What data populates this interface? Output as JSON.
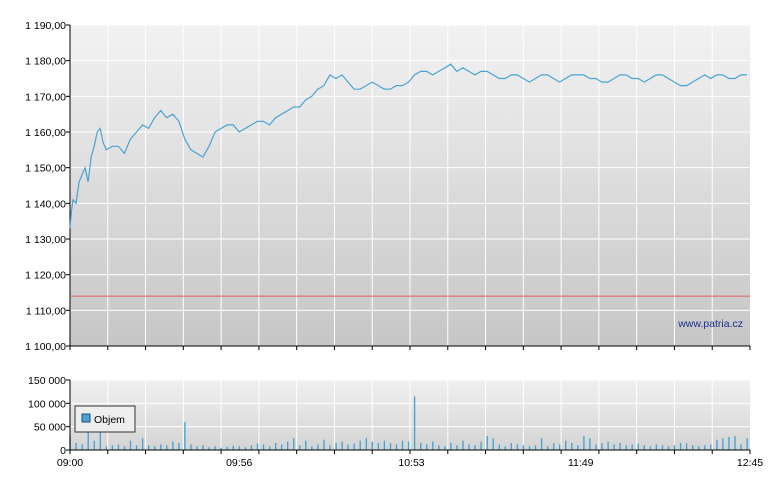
{
  "colors": {
    "price_line": "#4aa3d4",
    "volume_bar": "#4aa3d4",
    "reference_line": "#e06060",
    "grid": "#ffffff",
    "bg_top": "#f2f2f2",
    "bg_bottom": "#c6c6c6"
  },
  "watermark": "www.patria.cz",
  "legend": {
    "label": "Objem"
  },
  "chart_data": [
    {
      "type": "line",
      "title": "",
      "xlabel": "",
      "ylabel": "",
      "ylim": [
        1100,
        1190
      ],
      "xlim_minutes": [
        0,
        225
      ],
      "y_ticks": [
        1100,
        1110,
        1120,
        1130,
        1140,
        1150,
        1160,
        1170,
        1180,
        1190
      ],
      "y_tick_labels": [
        "1 100,00",
        "1 110,00",
        "1 120,00",
        "1 130,00",
        "1 140,00",
        "1 150,00",
        "1 160,00",
        "1 170,00",
        "1 180,00",
        "1 190,00"
      ],
      "reference_line": 1114,
      "series": [
        {
          "x": [
            0,
            0.5,
            1,
            2,
            3,
            4,
            5,
            6,
            7,
            8,
            9,
            10,
            11,
            12,
            14,
            16,
            18,
            20,
            22,
            24,
            26,
            28,
            30,
            32,
            34,
            36,
            38,
            40,
            42,
            44,
            46,
            48,
            50,
            52,
            54,
            56,
            58,
            60,
            62,
            64,
            66,
            68,
            70,
            72,
            74,
            76,
            78,
            80,
            82,
            84,
            86,
            88,
            90,
            92,
            94,
            96,
            98,
            100,
            102,
            104,
            106,
            108,
            110,
            112,
            114,
            116,
            118,
            120,
            122,
            124,
            126,
            128,
            130,
            132,
            134,
            136,
            138,
            140,
            142,
            144,
            146,
            148,
            150,
            152,
            154,
            156,
            158,
            160,
            162,
            164,
            166,
            168,
            170,
            172,
            174,
            176,
            178,
            180,
            182,
            184,
            186,
            188,
            190,
            192,
            194,
            196,
            198,
            200,
            202,
            204,
            206,
            208,
            210,
            212,
            214,
            216,
            218,
            220,
            222,
            224
          ],
          "values": [
            1133,
            1138,
            1141,
            1140,
            1146,
            1148,
            1150,
            1146,
            1153,
            1156,
            1160,
            1161,
            1157,
            1155,
            1156,
            1156,
            1154,
            1158,
            1160,
            1162,
            1161,
            1164,
            1166,
            1164,
            1165,
            1163,
            1158,
            1155,
            1154,
            1153,
            1156,
            1160,
            1161,
            1162,
            1162,
            1160,
            1161,
            1162,
            1163,
            1163,
            1162,
            1164,
            1165,
            1166,
            1167,
            1167,
            1169,
            1170,
            1172,
            1173,
            1176,
            1175,
            1176,
            1174,
            1172,
            1172,
            1173,
            1174,
            1173,
            1172,
            1172,
            1173,
            1173,
            1174,
            1176,
            1177,
            1177,
            1176,
            1177,
            1178,
            1179,
            1177,
            1178,
            1177,
            1176,
            1177,
            1177,
            1176,
            1175,
            1175,
            1176,
            1176,
            1175,
            1174,
            1175,
            1176,
            1176,
            1175,
            1174,
            1175,
            1176,
            1176,
            1176,
            1175,
            1175,
            1174,
            1174,
            1175,
            1176,
            1176,
            1175,
            1175,
            1174,
            1175,
            1176,
            1176,
            1175,
            1174,
            1173,
            1173,
            1174,
            1175,
            1176,
            1175,
            1176,
            1176,
            1175,
            1175,
            1176,
            1176
          ]
        }
      ]
    },
    {
      "type": "bar",
      "title": "",
      "xlabel": "",
      "ylabel": "",
      "ylim": [
        0,
        150000
      ],
      "y_ticks": [
        0,
        50000,
        100000,
        150000
      ],
      "y_tick_labels": [
        "0",
        "50 000",
        "100 000",
        "150 000"
      ],
      "x_tick_minutes": [
        0,
        56,
        113,
        169,
        225
      ],
      "x_tick_labels": [
        "09:00",
        "09:56",
        "10:53",
        "11:49",
        "12:45"
      ],
      "series": [
        {
          "name": "Objem",
          "x": [
            0,
            2,
            4,
            6,
            8,
            10,
            12,
            14,
            16,
            18,
            20,
            22,
            24,
            26,
            28,
            30,
            32,
            34,
            36,
            38,
            40,
            42,
            44,
            46,
            48,
            50,
            52,
            54,
            56,
            58,
            60,
            62,
            64,
            66,
            68,
            70,
            72,
            74,
            76,
            78,
            80,
            82,
            84,
            86,
            88,
            90,
            92,
            94,
            96,
            98,
            100,
            102,
            104,
            106,
            108,
            110,
            112,
            114,
            116,
            118,
            120,
            122,
            124,
            126,
            128,
            130,
            132,
            134,
            136,
            138,
            140,
            142,
            144,
            146,
            148,
            150,
            152,
            154,
            156,
            158,
            160,
            162,
            164,
            166,
            168,
            170,
            172,
            174,
            176,
            178,
            180,
            182,
            184,
            186,
            188,
            190,
            192,
            194,
            196,
            198,
            200,
            202,
            204,
            206,
            208,
            210,
            212,
            214,
            216,
            218,
            220,
            222,
            224
          ],
          "values": [
            30000,
            15000,
            12000,
            55000,
            20000,
            60000,
            8000,
            10000,
            12000,
            8000,
            20000,
            10000,
            25000,
            10000,
            8000,
            12000,
            10000,
            18000,
            15000,
            60000,
            12000,
            8000,
            10000,
            6000,
            8000,
            5000,
            7000,
            9000,
            8000,
            6000,
            10000,
            14000,
            12000,
            8000,
            15000,
            12000,
            18000,
            25000,
            10000,
            20000,
            8000,
            12000,
            22000,
            10000,
            15000,
            18000,
            12000,
            14000,
            20000,
            25000,
            18000,
            15000,
            20000,
            15000,
            12000,
            20000,
            18000,
            115000,
            15000,
            12000,
            18000,
            10000,
            8000,
            15000,
            10000,
            20000,
            12000,
            10000,
            18000,
            30000,
            25000,
            12000,
            8000,
            15000,
            12000,
            10000,
            8000,
            10000,
            25000,
            8000,
            15000,
            12000,
            20000,
            15000,
            10000,
            30000,
            25000,
            12000,
            15000,
            18000,
            12000,
            15000,
            10000,
            12000,
            14000,
            10000,
            8000,
            12000,
            10000,
            8000,
            10000,
            15000,
            14000,
            10000,
            8000,
            10000,
            12000,
            22000,
            25000,
            28000,
            30000,
            12000,
            25000
          ]
        }
      ]
    }
  ]
}
